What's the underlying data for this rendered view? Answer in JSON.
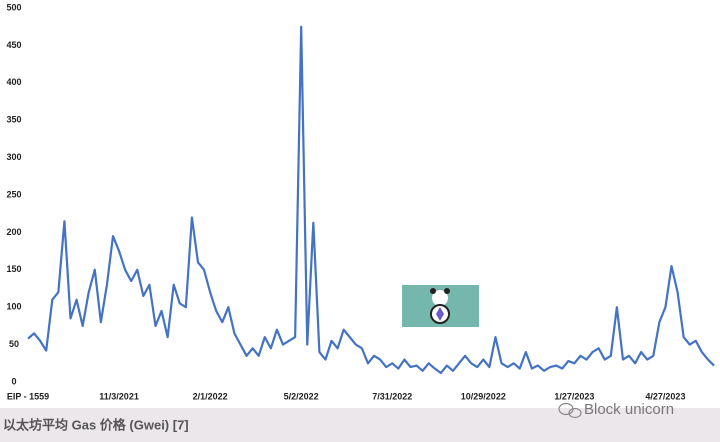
{
  "chart_data": {
    "type": "line",
    "caption": "以太坊平均 Gas 价格 (Gwei) [7]",
    "watermark": "Block unicorn",
    "categories": [
      "EIP - 1559",
      null,
      null,
      null,
      null,
      null,
      null,
      null,
      null,
      null,
      null,
      null,
      null,
      null,
      null,
      "11/3/2021",
      null,
      null,
      null,
      null,
      null,
      null,
      null,
      null,
      null,
      null,
      null,
      null,
      null,
      null,
      "2/1/2022",
      null,
      null,
      null,
      null,
      null,
      null,
      null,
      null,
      null,
      null,
      null,
      null,
      null,
      null,
      "5/2/2022",
      null,
      null,
      null,
      null,
      null,
      null,
      null,
      null,
      null,
      null,
      null,
      null,
      null,
      null,
      "7/31/2022",
      null,
      null,
      null,
      null,
      null,
      null,
      null,
      null,
      null,
      null,
      null,
      null,
      null,
      null,
      "10/29/2022",
      null,
      null,
      null,
      null,
      null,
      null,
      null,
      null,
      null,
      null,
      null,
      null,
      null,
      null,
      "1/27/2023",
      null,
      null,
      null,
      null,
      null,
      null,
      null,
      null,
      null,
      null,
      null,
      null,
      null,
      null,
      "4/27/2023",
      null,
      null,
      null,
      null,
      null,
      null,
      null,
      null
    ],
    "values": [
      58,
      65,
      55,
      42,
      110,
      120,
      215,
      85,
      110,
      75,
      120,
      150,
      80,
      130,
      195,
      175,
      150,
      135,
      150,
      115,
      130,
      75,
      95,
      60,
      130,
      105,
      100,
      220,
      160,
      150,
      120,
      95,
      80,
      100,
      65,
      50,
      35,
      45,
      35,
      60,
      45,
      70,
      50,
      55,
      60,
      475,
      50,
      213,
      40,
      30,
      55,
      45,
      70,
      60,
      50,
      45,
      25,
      35,
      30,
      20,
      25,
      18,
      30,
      20,
      22,
      15,
      25,
      18,
      12,
      22,
      15,
      25,
      35,
      25,
      20,
      30,
      20,
      60,
      25,
      20,
      25,
      18,
      40,
      18,
      22,
      15,
      20,
      22,
      18,
      28,
      25,
      35,
      30,
      40,
      45,
      30,
      35,
      100,
      30,
      35,
      25,
      40,
      30,
      35,
      80,
      100,
      155,
      120,
      60,
      50,
      55,
      40,
      30,
      22
    ],
    "color": "#4472c4",
    "ylim": [
      0,
      500
    ],
    "yticks": [
      0,
      50,
      100,
      150,
      200,
      250,
      300,
      350,
      400,
      450,
      500
    ],
    "grid": false
  }
}
